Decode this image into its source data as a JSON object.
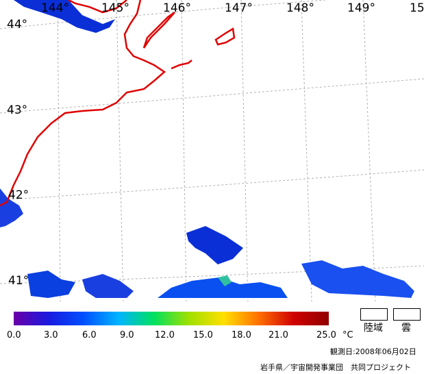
{
  "map": {
    "longitude_labels": [
      "144°",
      "145°",
      "146°",
      "147°",
      "148°",
      "149°",
      "15"
    ],
    "latitude_labels": [
      "44°",
      "43°",
      "42°",
      "41°"
    ]
  },
  "colorbar": {
    "ticks": [
      "0.0",
      "3.0",
      "6.0",
      "9.0",
      "12.0",
      "15.0",
      "18.0",
      "21.0",
      "25.0"
    ],
    "unit": "°C",
    "colors": [
      "#6a00a8",
      "#1a1adf",
      "#0050ff",
      "#00b4ff",
      "#00e060",
      "#a0e000",
      "#ffe000",
      "#ff7000",
      "#d00000",
      "#900000"
    ]
  },
  "legend": {
    "land_label": "陸域",
    "cloud_label": "雲"
  },
  "footer": {
    "observation_date": "観測日:2008年06月02日",
    "credit": "岩手県／宇宙開発事業団　共同プロジェクト"
  }
}
